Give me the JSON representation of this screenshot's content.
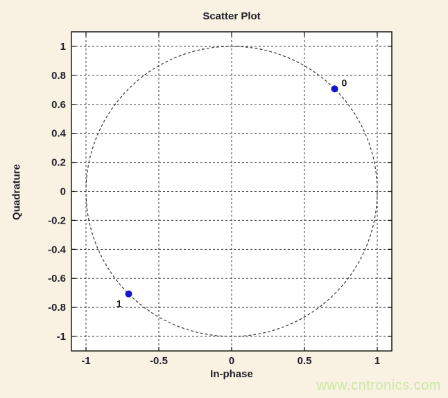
{
  "figure": {
    "watermark": "www.cntronics.com"
  },
  "colors": {
    "figure_background": "#F9F2E2",
    "plot_background": "#FFFFFF",
    "axis_box": "#1a1a1a",
    "grid": "#3a3a3a",
    "circle": "#333333",
    "marker": "#1513CE",
    "text": "#1e1e28",
    "watermark": "#CBE6A3"
  },
  "chart_data": {
    "type": "scatter",
    "title": "Scatter Plot",
    "xlabel": "In-phase",
    "ylabel": "Quadrature",
    "xlim": [
      -1.1,
      1.1
    ],
    "ylim": [
      -1.1,
      1.1
    ],
    "xticks": [
      -1,
      -0.5,
      0,
      0.5,
      1
    ],
    "yticks": [
      -1,
      -0.8,
      -0.6,
      -0.4,
      -0.2,
      0,
      0.2,
      0.4,
      0.6,
      0.8,
      1
    ],
    "grid": true,
    "grid_style": "dashed",
    "legend_position": "none",
    "reference_circle": {
      "center_x": 0,
      "center_y": 0,
      "radius": 1,
      "style": "dashed"
    },
    "points": [
      {
        "label": "0",
        "x": 0.7071,
        "y": 0.7071,
        "label_position": "above-right"
      },
      {
        "label": "1",
        "x": -0.7071,
        "y": -0.7071,
        "label_position": "below-left"
      }
    ]
  }
}
